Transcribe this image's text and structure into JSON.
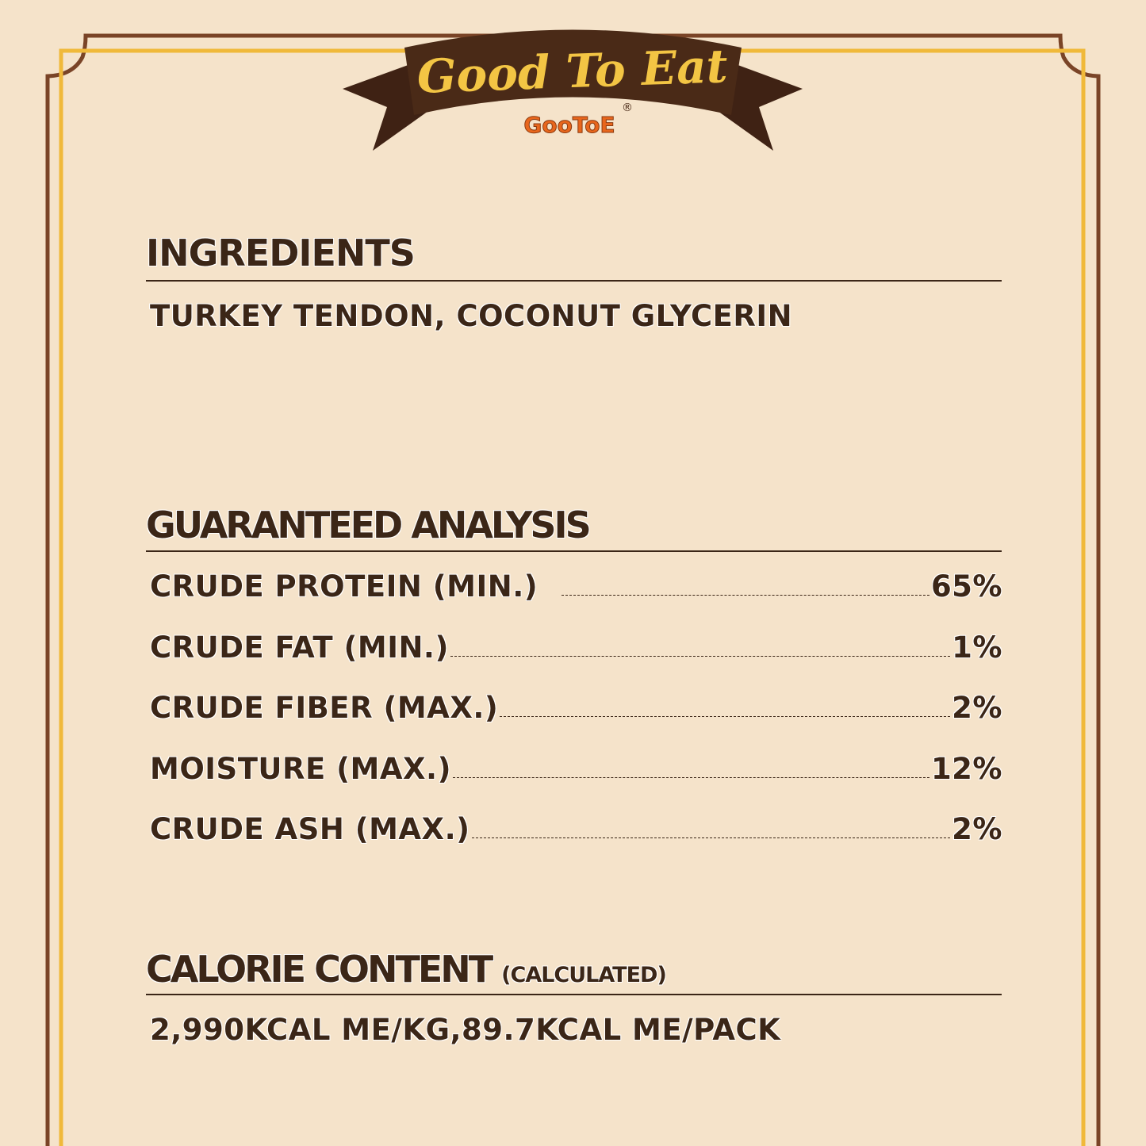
{
  "banner": {
    "title": "Good To Eat",
    "brand": "GooToE",
    "registered": "®"
  },
  "ingredients": {
    "heading": "INGREDIENTS",
    "text": "TURKEY TENDON, COCONUT GLYCERIN"
  },
  "analysis": {
    "heading": "GUARANTEED ANALYSIS",
    "rows": [
      {
        "label": "CRUDE PROTEIN (MIN.)",
        "value": "65%"
      },
      {
        "label": "CRUDE FAT (MIN.)",
        "value": "1%"
      },
      {
        "label": "CRUDE FIBER (MAX.)",
        "value": "2%"
      },
      {
        "label": "MOISTURE (MAX.)",
        "value": "12%"
      },
      {
        "label": "CRUDE ASH (MAX.)",
        "value": "2%"
      }
    ]
  },
  "calorie": {
    "heading": "CALORIE CONTENT",
    "qualifier": "(CALCULATED)",
    "text": "2,990KCAL ME/KG,89.7KCAL ME/PACK"
  },
  "colors": {
    "background": "#f5e3ca",
    "brown": "#3b2617",
    "frame_brown": "#7a4427",
    "frame_yellow": "#f0b93a",
    "banner": "#4a2a17",
    "banner_text": "#f3c544",
    "brand": "#e8661c"
  }
}
